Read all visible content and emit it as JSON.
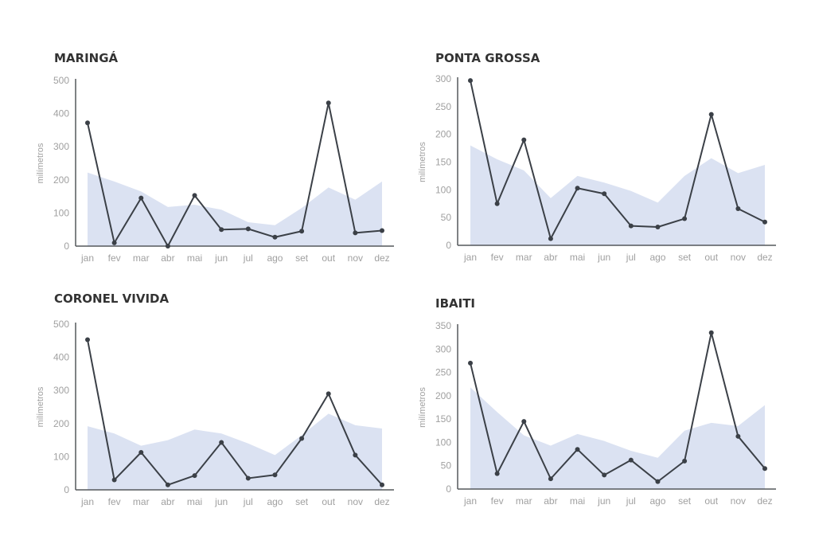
{
  "colors": {
    "area": "#dbe2f2",
    "line": "#3b4047",
    "axis": "#55585c",
    "tick_text": "#a0a0a0",
    "title": "#333333"
  },
  "chart_data": [
    {
      "type": "line",
      "title": "MARINGÁ",
      "ylabel": "milímetros",
      "categories": [
        "jan",
        "fev",
        "mar",
        "abr",
        "mai",
        "jun",
        "jul",
        "ago",
        "set",
        "out",
        "nov",
        "dez"
      ],
      "ylim": [
        0,
        500
      ],
      "yticks": [
        0,
        100,
        200,
        300,
        400,
        500
      ],
      "series": [
        {
          "type": "area",
          "values": [
            222,
            195,
            165,
            118,
            125,
            110,
            72,
            63,
            115,
            177,
            140,
            195
          ]
        },
        {
          "type": "line",
          "values": [
            372,
            10,
            145,
            0,
            153,
            50,
            52,
            27,
            45,
            432,
            40,
            47
          ]
        }
      ]
    },
    {
      "type": "line",
      "title": "PONTA GROSSA",
      "ylabel": "milímetros",
      "categories": [
        "jan",
        "fev",
        "mar",
        "abr",
        "mai",
        "jun",
        "jul",
        "ago",
        "set",
        "out",
        "nov",
        "dez"
      ],
      "ylim": [
        0,
        300
      ],
      "yticks": [
        0,
        50,
        100,
        150,
        200,
        250,
        300
      ],
      "series": [
        {
          "type": "area",
          "values": [
            180,
            155,
            135,
            85,
            125,
            113,
            98,
            77,
            125,
            157,
            130,
            145
          ]
        },
        {
          "type": "line",
          "values": [
            297,
            75,
            190,
            12,
            103,
            93,
            35,
            33,
            48,
            236,
            66,
            42
          ]
        }
      ]
    },
    {
      "type": "line",
      "title": "CORONEL VIVIDA",
      "ylabel": "milímetros",
      "categories": [
        "jan",
        "fev",
        "mar",
        "abr",
        "mai",
        "jun",
        "jul",
        "ago",
        "set",
        "out",
        "nov",
        "dez"
      ],
      "ylim": [
        0,
        500
      ],
      "yticks": [
        0,
        100,
        200,
        300,
        400,
        500
      ],
      "series": [
        {
          "type": "area",
          "values": [
            192,
            170,
            133,
            150,
            182,
            170,
            140,
            105,
            165,
            230,
            195,
            185
          ]
        },
        {
          "type": "line",
          "values": [
            453,
            30,
            113,
            15,
            43,
            143,
            35,
            45,
            155,
            290,
            105,
            15
          ]
        }
      ]
    },
    {
      "type": "line",
      "title": "IBAITI",
      "ylabel": "milímetros",
      "categories": [
        "jan",
        "fev",
        "mar",
        "abr",
        "mai",
        "jun",
        "jul",
        "ago",
        "set",
        "out",
        "nov",
        "dez"
      ],
      "ylim": [
        0,
        350
      ],
      "yticks": [
        0,
        50,
        100,
        150,
        200,
        250,
        300,
        350
      ],
      "series": [
        {
          "type": "area",
          "values": [
            218,
            165,
            115,
            93,
            118,
            103,
            82,
            67,
            125,
            142,
            135,
            180
          ]
        },
        {
          "type": "line",
          "values": [
            270,
            33,
            145,
            22,
            85,
            30,
            62,
            16,
            60,
            335,
            113,
            44
          ]
        }
      ]
    }
  ]
}
